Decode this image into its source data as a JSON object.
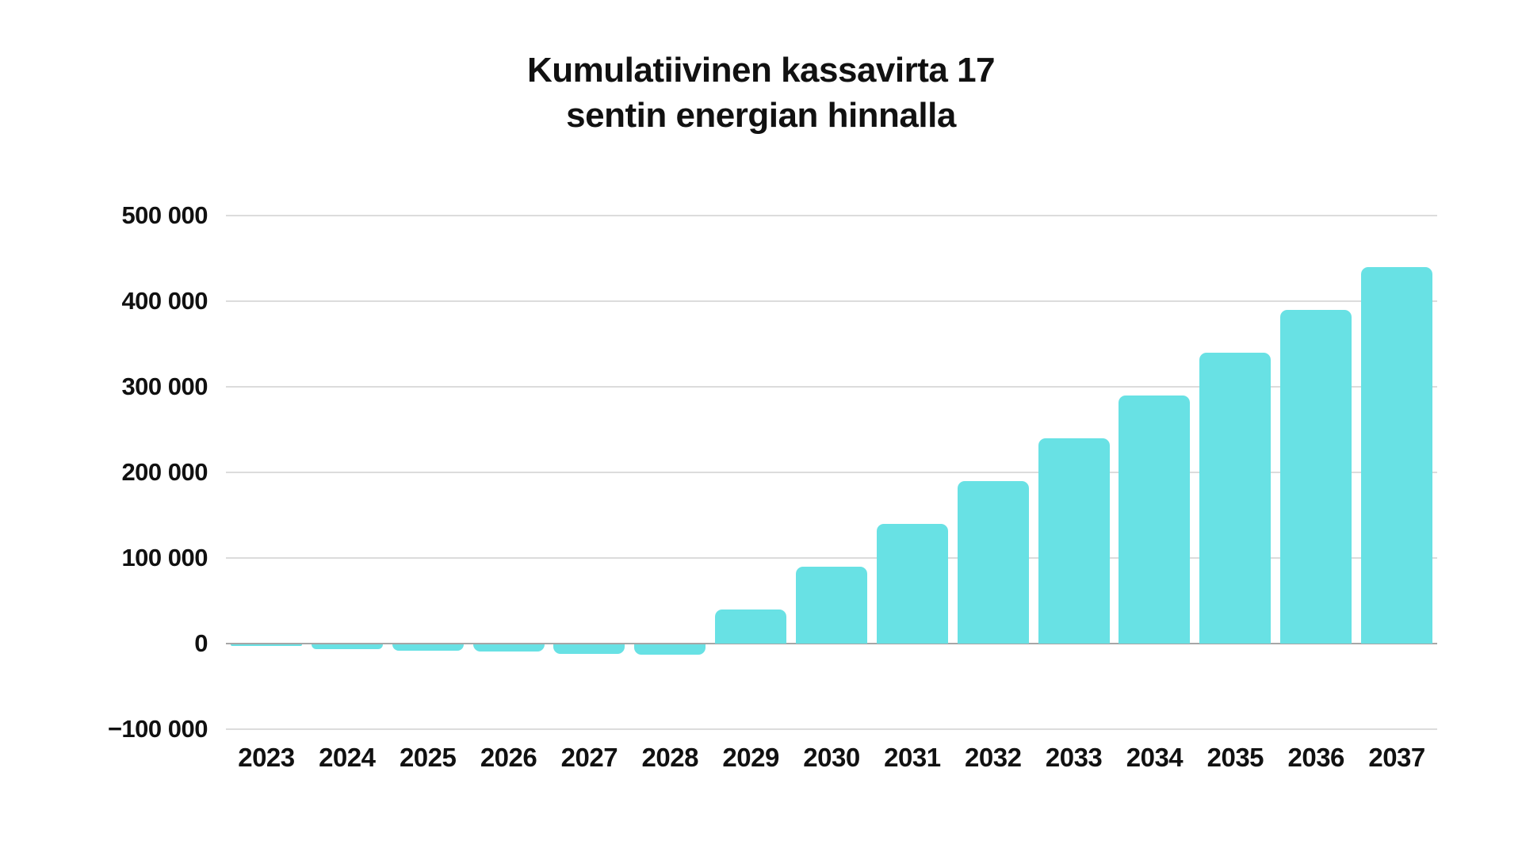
{
  "title": {
    "line1": "Kumulatiivinen kassavirta 17",
    "line2": "sentin energian hinnalla"
  },
  "chart_data": {
    "type": "bar",
    "title": "Kumulatiivinen kassavirta 17 sentin energian hinnalla",
    "xlabel": "",
    "ylabel": "",
    "categories": [
      "2023",
      "2024",
      "2025",
      "2026",
      "2027",
      "2028",
      "2029",
      "2030",
      "2031",
      "2032",
      "2033",
      "2034",
      "2035",
      "2036",
      "2037"
    ],
    "values": [
      -2000,
      -5500,
      -7500,
      -8500,
      -11000,
      -12000,
      40000,
      90000,
      140000,
      190000,
      240000,
      290000,
      340000,
      390000,
      440000
    ],
    "ylim": [
      -100000,
      500000
    ],
    "ytick_step": 100000,
    "yticks": [
      {
        "label": "500 000",
        "value": 500000
      },
      {
        "label": "400 000",
        "value": 400000
      },
      {
        "label": "300 000",
        "value": 300000
      },
      {
        "label": "200 000",
        "value": 200000
      },
      {
        "label": "100 000",
        "value": 100000
      },
      {
        "label": "0",
        "value": 0
      },
      {
        "label": "−100 000",
        "value": -100000
      }
    ],
    "grid": "horizontal",
    "legend": "none",
    "colors": {
      "bar": "#68E1E4",
      "gridline": "#dcdcdc",
      "zero_line": "#a6a6a6",
      "axis_text": "#111111",
      "title_text": "#111111",
      "background": "#ffffff"
    }
  }
}
